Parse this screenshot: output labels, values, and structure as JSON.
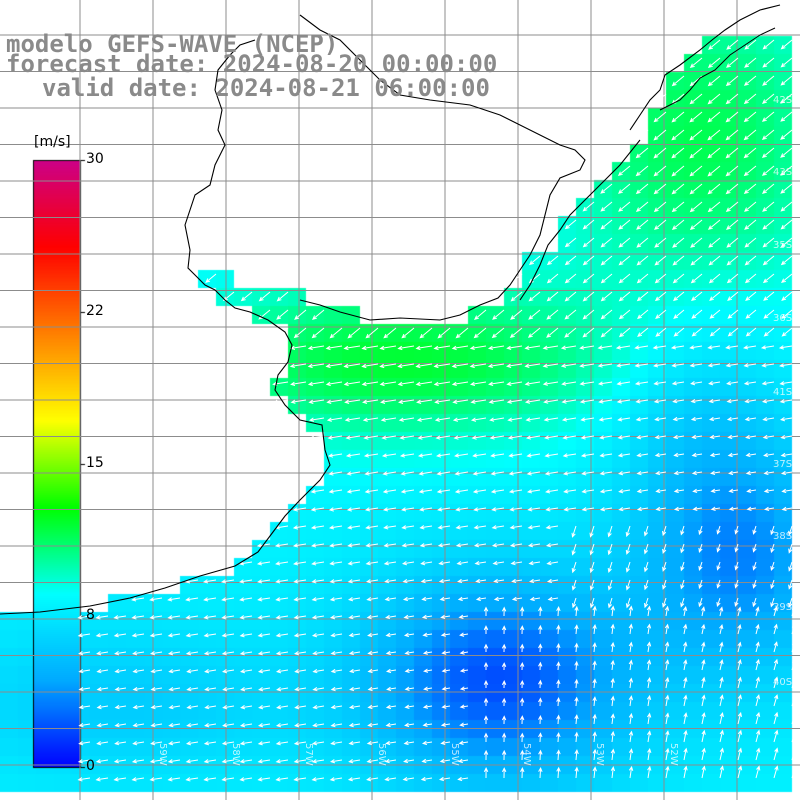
{
  "title": {
    "model": "modelo GEFS-WAVE (NCEP)",
    "forecast": "forecast date: 2024-08-20 00:00:00",
    "valid": "valid date: 2024-08-21 06:00:00"
  },
  "colorbar": {
    "unit": "[m/s]",
    "ticks": [
      "30",
      "22",
      "15",
      "8",
      "0"
    ],
    "range": [
      0,
      30
    ],
    "colors": [
      "#0000ff",
      "#00aaff",
      "#00ffff",
      "#00ff00",
      "#ffff00",
      "#ff8000",
      "#ff0000",
      "#cc0088"
    ]
  },
  "map": {
    "latitude_labels": [
      "42S",
      "43S",
      "39S",
      "38S",
      "37S",
      "36S",
      "35S",
      "40S",
      "41S"
    ],
    "longitude_labels": [
      "59W",
      "58W",
      "57W",
      "56W",
      "55W",
      "54W",
      "53W",
      "52W"
    ],
    "field": "wind speed and direction",
    "land_color": "#ffffff",
    "grid_color": "#8c8c8c",
    "coastline_color": "#000000",
    "arrow_color": "#ffffff",
    "dominant_wind": "from northeast"
  }
}
